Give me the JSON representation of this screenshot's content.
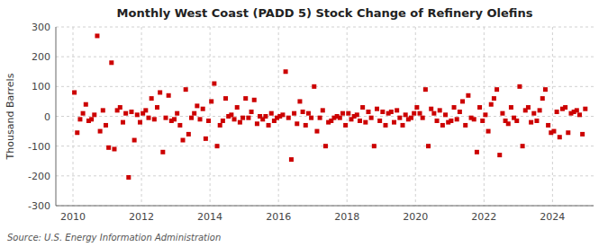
{
  "chart_data": {
    "type": "scatter",
    "title": "Monthly West Coast (PADD 5) Stock Change of Refinery Olefins",
    "y_label": "Thousand Barrels",
    "annotation": "Source: U.S. Energy Information Administration",
    "color": "#cc0000",
    "marker": "square",
    "grid": true,
    "xlim": [
      2009.5,
      2025.2
    ],
    "ylim": [
      -300,
      300
    ],
    "xticks": [
      2010,
      2012,
      2014,
      2016,
      2018,
      2020,
      2022,
      2024
    ],
    "yticks": [
      -300,
      -200,
      -100,
      0,
      100,
      200,
      300
    ],
    "x": [
      2010.0416666667,
      2010.125,
      2010.2083333333,
      2010.2916666667,
      2010.375,
      2010.4583333333,
      2010.5416666667,
      2010.625,
      2010.7083333333,
      2010.7916666667,
      2010.875,
      2010.9583333333,
      2011.0416666667,
      2011.125,
      2011.2083333333,
      2011.2916666667,
      2011.375,
      2011.4583333333,
      2011.5416666667,
      2011.625,
      2011.7083333333,
      2011.7916666667,
      2011.875,
      2011.9583333333,
      2012.0416666667,
      2012.125,
      2012.2083333333,
      2012.2916666667,
      2012.375,
      2012.4583333333,
      2012.5416666667,
      2012.625,
      2012.7083333333,
      2012.7916666667,
      2012.875,
      2012.9583333333,
      2013.0416666667,
      2013.125,
      2013.2083333333,
      2013.2916666667,
      2013.375,
      2013.4583333333,
      2013.5416666667,
      2013.625,
      2013.7083333333,
      2013.7916666667,
      2013.875,
      2013.9583333333,
      2014.0416666667,
      2014.125,
      2014.2083333333,
      2014.2916666667,
      2014.375,
      2014.4583333333,
      2014.5416666667,
      2014.625,
      2014.7083333333,
      2014.7916666667,
      2014.875,
      2014.9583333333,
      2015.0416666667,
      2015.125,
      2015.2083333333,
      2015.2916666667,
      2015.375,
      2015.4583333333,
      2015.5416666667,
      2015.625,
      2015.7083333333,
      2015.7916666667,
      2015.875,
      2015.9583333333,
      2016.0416666667,
      2016.125,
      2016.2083333333,
      2016.2916666667,
      2016.375,
      2016.4583333333,
      2016.5416666667,
      2016.625,
      2016.7083333333,
      2016.7916666667,
      2016.875,
      2016.9583333333,
      2017.0416666667,
      2017.125,
      2017.2083333333,
      2017.2916666667,
      2017.375,
      2017.4583333333,
      2017.5416666667,
      2017.625,
      2017.7083333333,
      2017.7916666667,
      2017.875,
      2017.9583333333,
      2018.0416666667,
      2018.125,
      2018.2083333333,
      2018.2916666667,
      2018.375,
      2018.4583333333,
      2018.5416666667,
      2018.625,
      2018.7083333333,
      2018.7916666667,
      2018.875,
      2018.9583333333,
      2019.0416666667,
      2019.125,
      2019.2083333333,
      2019.2916666667,
      2019.375,
      2019.4583333333,
      2019.5416666667,
      2019.625,
      2019.7083333333,
      2019.7916666667,
      2019.875,
      2019.9583333333,
      2020.0416666667,
      2020.125,
      2020.2083333333,
      2020.2916666667,
      2020.375,
      2020.4583333333,
      2020.5416666667,
      2020.625,
      2020.7083333333,
      2020.7916666667,
      2020.875,
      2020.9583333333,
      2021.0416666667,
      2021.125,
      2021.2083333333,
      2021.2916666667,
      2021.375,
      2021.4583333333,
      2021.5416666667,
      2021.625,
      2021.7083333333,
      2021.7916666667,
      2021.875,
      2021.9583333333,
      2022.0416666667,
      2022.125,
      2022.2083333333,
      2022.2916666667,
      2022.375,
      2022.4583333333,
      2022.5416666667,
      2022.625,
      2022.7083333333,
      2022.7916666667,
      2022.875,
      2022.9583333333,
      2023.0416666667,
      2023.125,
      2023.2083333333,
      2023.2916666667,
      2023.375,
      2023.4583333333,
      2023.5416666667,
      2023.625,
      2023.7083333333,
      2023.7916666667,
      2023.875,
      2023.9583333333,
      2024.0416666667,
      2024.125,
      2024.2083333333,
      2024.2916666667,
      2024.375,
      2024.4583333333,
      2024.5416666667,
      2024.625,
      2024.7083333333,
      2024.7916666667,
      2024.875,
      2024.9583333333
    ],
    "values": [
      80,
      -55,
      -10,
      10,
      40,
      -15,
      -10,
      5,
      270,
      -50,
      20,
      -30,
      -105,
      180,
      -110,
      20,
      30,
      -20,
      10,
      -205,
      15,
      -80,
      5,
      -20,
      10,
      20,
      -5,
      60,
      -10,
      30,
      80,
      -120,
      -5,
      70,
      -15,
      -10,
      10,
      -30,
      -80,
      90,
      -60,
      -5,
      10,
      35,
      -10,
      25,
      -75,
      -15,
      50,
      110,
      -100,
      -30,
      -15,
      60,
      0,
      5,
      -10,
      30,
      -20,
      -5,
      60,
      -5,
      15,
      55,
      -25,
      0,
      -10,
      0,
      -30,
      10,
      -15,
      -5,
      0,
      5,
      150,
      -5,
      -145,
      10,
      -25,
      50,
      15,
      -30,
      10,
      -5,
      100,
      -50,
      -5,
      20,
      -100,
      -20,
      -15,
      -5,
      0,
      -5,
      10,
      -30,
      10,
      -10,
      0,
      5,
      -15,
      30,
      -20,
      15,
      -5,
      -100,
      25,
      -15,
      15,
      -30,
      10,
      15,
      -20,
      20,
      -5,
      -30,
      5,
      -10,
      -5,
      10,
      30,
      10,
      -5,
      90,
      -100,
      25,
      10,
      -15,
      20,
      -30,
      5,
      -20,
      -15,
      30,
      -10,
      15,
      50,
      -30,
      70,
      -5,
      -10,
      -120,
      30,
      -15,
      5,
      -50,
      40,
      60,
      90,
      -130,
      10,
      -15,
      -25,
      30,
      -5,
      -15,
      100,
      -100,
      20,
      30,
      -20,
      10,
      -15,
      20,
      60,
      90,
      -30,
      -55,
      -50,
      15,
      -70,
      25,
      30,
      -55,
      10,
      15,
      20,
      5,
      -60,
      25
    ]
  }
}
